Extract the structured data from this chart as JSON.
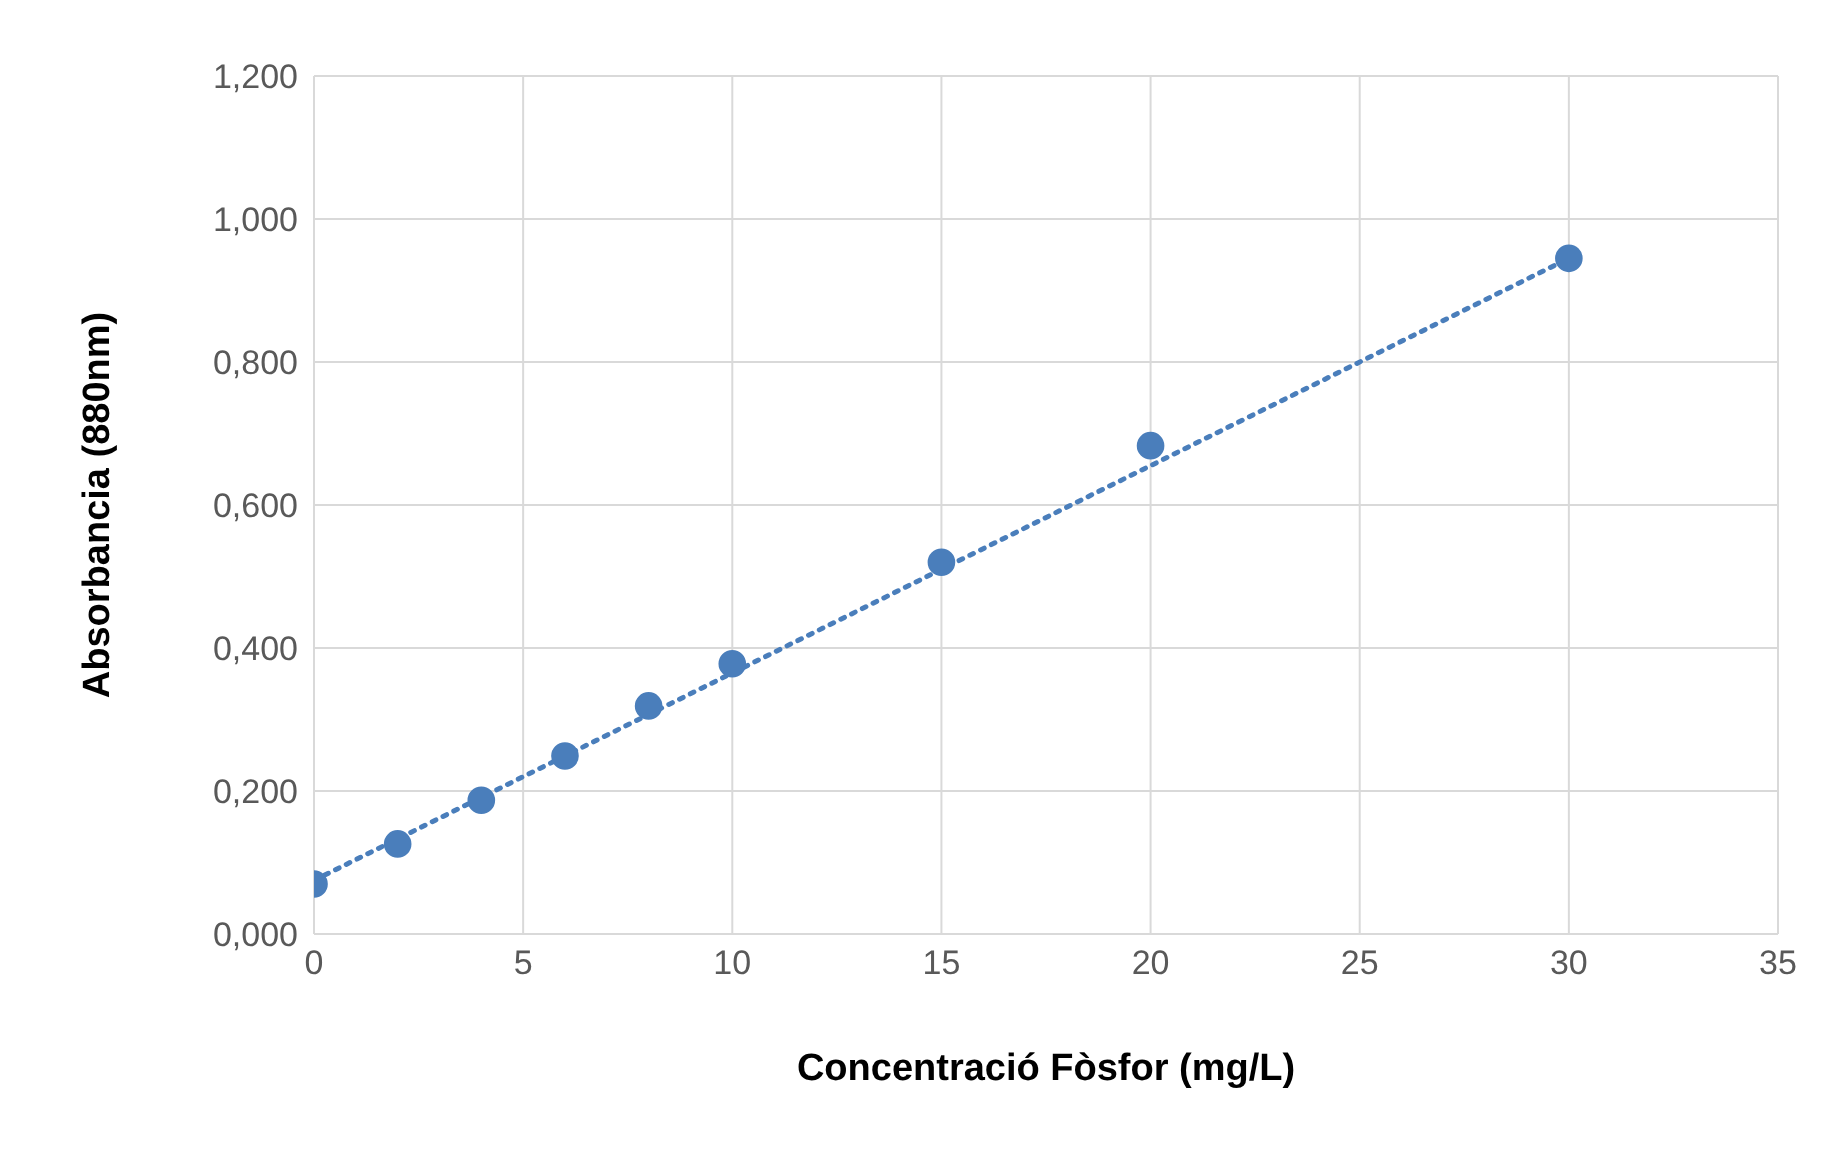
{
  "chart_data": {
    "type": "scatter",
    "xlabel": "Concentració Fòsfor (mg/L)",
    "ylabel": "Absorbancia (880nm)",
    "xlim": [
      0,
      35
    ],
    "xticks": [
      0,
      5,
      10,
      15,
      20,
      25,
      30,
      35
    ],
    "ylim": [
      0,
      1.2
    ],
    "yticks": [
      {
        "value": 0,
        "label": "0,000"
      },
      {
        "value": 0.2,
        "label": "0,200"
      },
      {
        "value": 0.4,
        "label": "0,400"
      },
      {
        "value": 0.6,
        "label": "0,600"
      },
      {
        "value": 0.8,
        "label": "0,800"
      },
      {
        "value": 1,
        "label": "1,000"
      },
      {
        "value": 1.2,
        "label": "1,200"
      }
    ],
    "grid": true,
    "legend": false,
    "series": [
      {
        "type": "scatter",
        "marker": "circle",
        "color": "#4a7ebb",
        "x": [
          0,
          2,
          4,
          6,
          8,
          10,
          15,
          20,
          30
        ],
        "values": [
          0.07,
          0.126,
          0.187,
          0.249,
          0.319,
          0.378,
          0.52,
          0.683,
          0.945
        ]
      },
      {
        "type": "line",
        "line_style": "dotted",
        "color": "#4a7ebb",
        "x": [
          0,
          30
        ],
        "values": [
          0.075,
          0.945
        ]
      }
    ]
  }
}
